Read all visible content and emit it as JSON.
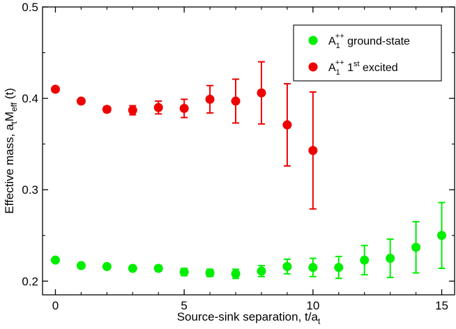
{
  "chart_data": {
    "type": "scatter",
    "title": "",
    "xlabel": {
      "main": "Source-sink separation, t/a",
      "sub": "t"
    },
    "ylabel": {
      "main": "Effective mass, a",
      "sub1": "t",
      "mid": "M",
      "sub2": "eff",
      "tail": " (t)"
    },
    "xlim": [
      -0.5,
      15.5
    ],
    "ylim": [
      0.185,
      0.5
    ],
    "xticks": [
      0,
      5,
      10,
      15
    ],
    "yticks": [
      0.2,
      0.3,
      0.4,
      0.5
    ],
    "ytick_labels": [
      "0.2",
      "0.3",
      "0.4",
      "0.5"
    ],
    "legend_position": "top-right",
    "series": [
      {
        "name": "A1++ ground-state",
        "label_main": "A",
        "label_sub": "1",
        "label_sup": "++",
        "label_tail": " ground-state",
        "color": "#00ee00",
        "x": [
          0,
          1,
          2,
          3,
          4,
          5,
          6,
          7,
          8,
          9,
          10,
          11,
          12,
          13,
          14,
          15
        ],
        "y": [
          0.223,
          0.217,
          0.216,
          0.214,
          0.214,
          0.21,
          0.209,
          0.208,
          0.211,
          0.216,
          0.215,
          0.215,
          0.223,
          0.225,
          0.237,
          0.25
        ],
        "err": [
          0.001,
          0.002,
          0.002,
          0.002,
          0.003,
          0.004,
          0.004,
          0.005,
          0.006,
          0.008,
          0.01,
          0.012,
          0.016,
          0.021,
          0.028,
          0.036
        ]
      },
      {
        "name": "A1++ 1st excited",
        "label_main": "A",
        "label_sub": "1",
        "label_sup": "++",
        "label_mid": " 1",
        "label_sup2": "st",
        "label_tail": " excited",
        "color": "#ee0000",
        "x": [
          0,
          1,
          2,
          3,
          4,
          5,
          6,
          7,
          8,
          9,
          10
        ],
        "y": [
          0.41,
          0.397,
          0.388,
          0.387,
          0.39,
          0.389,
          0.399,
          0.397,
          0.406,
          0.371,
          0.343
        ],
        "err": [
          0.002,
          0.002,
          0.003,
          0.005,
          0.007,
          0.01,
          0.015,
          0.024,
          0.034,
          0.045,
          0.064
        ]
      }
    ]
  }
}
